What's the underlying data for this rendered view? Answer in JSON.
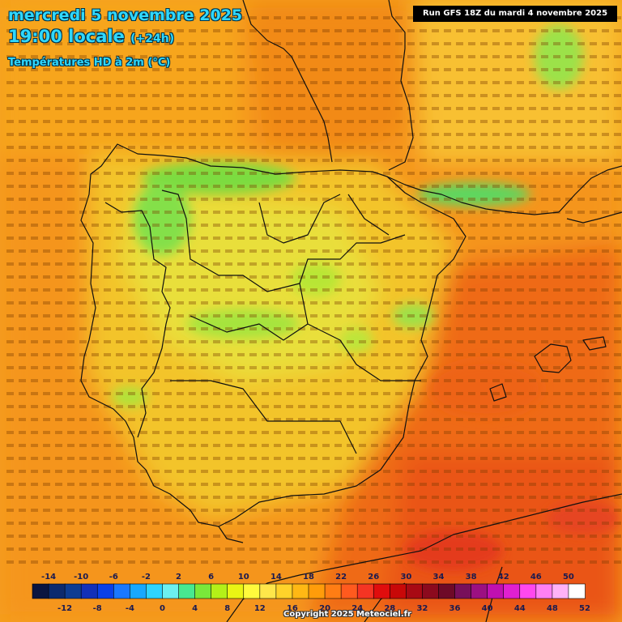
{
  "header": {
    "date_line": "mercredi 5 novembre 2025",
    "time_line": "19:00 locale",
    "lead_time": "(+24h)",
    "product": "Températures HD à 2m (°C)"
  },
  "run_label": "Run GFS 18Z du mardi 4 novembre 2025",
  "copyright": "Copyright 2025 Meteociel.fr",
  "legend": {
    "top_labels": [
      "-14",
      "-10",
      "-6",
      "-2",
      "2",
      "6",
      "10",
      "14",
      "18",
      "22",
      "26",
      "30",
      "34",
      "38",
      "42",
      "46",
      "50"
    ],
    "bottom_labels": [
      "-12",
      "-8",
      "-4",
      "0",
      "4",
      "8",
      "12",
      "16",
      "20",
      "24",
      "28",
      "32",
      "36",
      "40",
      "44",
      "48",
      "52"
    ],
    "colors": [
      "#0a1540",
      "#0c2a6e",
      "#0d3c92",
      "#1230b8",
      "#0a40e8",
      "#1a78ff",
      "#18a8ff",
      "#2ed4ff",
      "#6cf0f0",
      "#48e890",
      "#7ae83a",
      "#b4f018",
      "#eaf514",
      "#fffa3c",
      "#ffe64a",
      "#ffd22a",
      "#ffb814",
      "#ff9c0a",
      "#ff7d14",
      "#ff5a1e",
      "#f53423",
      "#e00d0d",
      "#c80808",
      "#a80a14",
      "#8c0a1e",
      "#6e0a28",
      "#78105a",
      "#9c1082",
      "#c010b0",
      "#e020d0",
      "#ff48ee",
      "#ff80f4",
      "#ffb2f8",
      "#ffffff"
    ]
  },
  "map": {
    "regions": [
      "mer",
      "Espagne",
      "Portugal",
      "France",
      "Baleares",
      "Maroc",
      "Algérie"
    ]
  }
}
